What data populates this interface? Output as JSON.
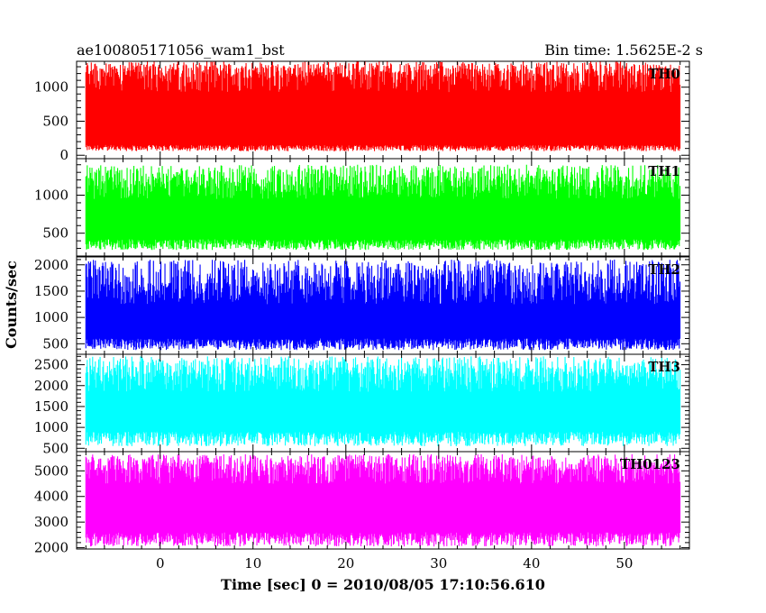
{
  "title_left": "ae100805171056_wam1_bst",
  "title_right": "Bin time: 1.5625E-2 s",
  "chart_data": {
    "type": "line",
    "title": "ae100805171056_wam1_bst",
    "bin_time": "Bin time: 1.5625E-2 s",
    "xlabel": "Time [sec] 0 = 2010/08/05 17:10:56.610",
    "ylabel": "Counts/sec",
    "xlim": [
      -9,
      57
    ],
    "x_data_range": [
      -8,
      56
    ],
    "x_ticks": [
      0,
      10,
      20,
      30,
      40,
      50
    ],
    "grid": false,
    "panels": [
      {
        "name": "TH0",
        "color": "#ff0000",
        "ylim": [
          -50,
          1380
        ],
        "y_ticks": [
          0,
          500,
          1000
        ],
        "band_low": [
          60,
          150
        ],
        "band_high": [
          1150,
          1380
        ],
        "typical_value": 700
      },
      {
        "name": "TH1",
        "color": "#00ff00",
        "ylim": [
          200,
          1480
        ],
        "y_ticks": [
          500,
          1000
        ],
        "band_low": [
          280,
          420
        ],
        "band_high": [
          1100,
          1400
        ],
        "typical_value": 800
      },
      {
        "name": "TH2",
        "color": "#0000ff",
        "ylim": [
          300,
          2150
        ],
        "y_ticks": [
          500,
          1000,
          1500,
          2000
        ],
        "band_low": [
          380,
          600
        ],
        "band_high": [
          1500,
          2100
        ],
        "typical_value": 1000
      },
      {
        "name": "TH3",
        "color": "#00ffff",
        "ylim": [
          420,
          2750
        ],
        "y_ticks": [
          500,
          1000,
          1500,
          2000,
          2500
        ],
        "band_low": [
          550,
          900
        ],
        "band_high": [
          2200,
          2700
        ],
        "typical_value": 1500
      },
      {
        "name": "TH0123",
        "color": "#ff00ff",
        "ylim": [
          1950,
          5750
        ],
        "y_ticks": [
          2000,
          3000,
          4000,
          5000
        ],
        "band_low": [
          2050,
          2600
        ],
        "band_high": [
          5000,
          5650
        ],
        "typical_value": 4000
      }
    ]
  }
}
